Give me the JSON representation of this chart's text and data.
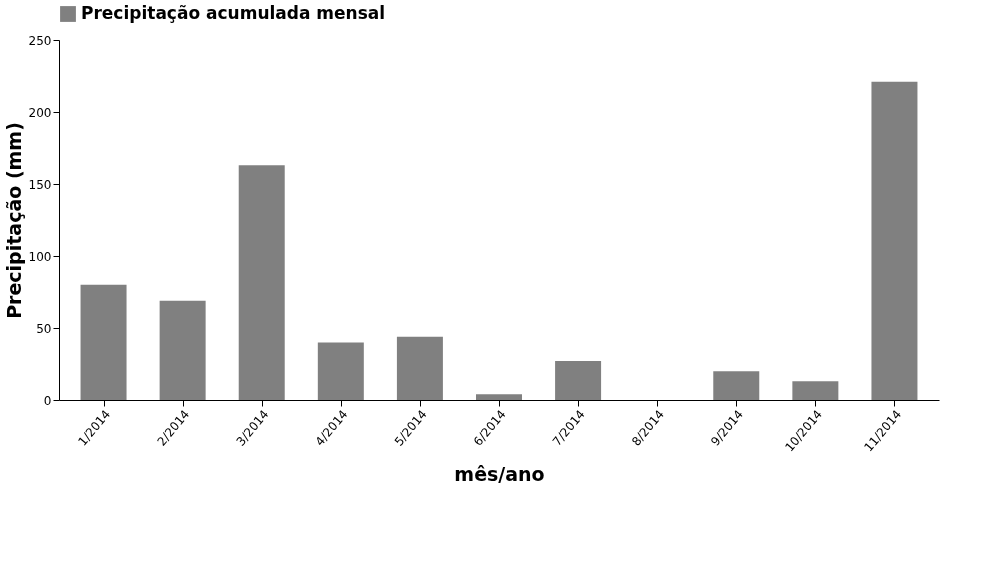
{
  "chart_data": {
    "type": "bar",
    "xlabel": "mês/ano",
    "ylabel": "Precipitação (mm)",
    "categories": [
      "1/2014",
      "2/2014",
      "3/2014",
      "4/2014",
      "5/2014",
      "6/2014",
      "7/2014",
      "8/2014",
      "9/2014",
      "10/2014",
      "11/2014"
    ],
    "series": [
      {
        "name": "Precipitação acumulada mensal",
        "color": "#808080",
        "values": [
          80,
          69,
          163,
          40,
          44,
          4,
          27,
          0,
          20,
          13,
          221
        ]
      }
    ],
    "ylim": [
      0,
      250
    ],
    "yticks": [
      0,
      50,
      100,
      150,
      200,
      250
    ],
    "grid": false,
    "legend": "top"
  }
}
